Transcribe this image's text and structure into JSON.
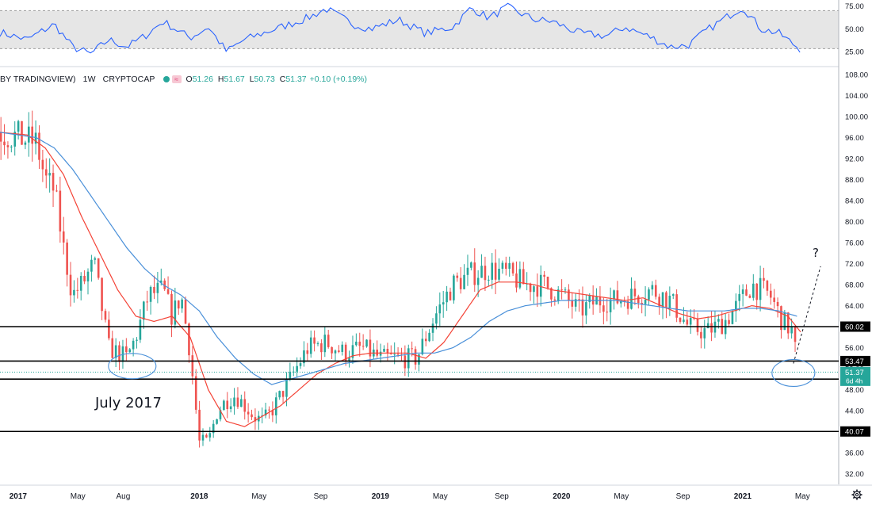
{
  "legend": {
    "symbol": "BY TRADINGVIEW)",
    "interval": "1W",
    "source": "CRYPTOCAP",
    "o_label": "O",
    "o": "51.26",
    "h_label": "H",
    "h": "51.67",
    "l_label": "L",
    "l": "50.73",
    "c_label": "C",
    "c": "51.37",
    "change": "+0.10 (+0.19%)"
  },
  "annotations": {
    "july_label": "July 2017",
    "question": "?"
  },
  "colors": {
    "up": "#26a69a",
    "down": "#ef5350",
    "ma_fast": "#f44336",
    "ma_slow": "#4a90d9",
    "rsi": "#2962ff",
    "level_line": "#000000",
    "price_tag": "#26a69a"
  },
  "chart_data": [
    {
      "type": "line",
      "panel": "oscillator",
      "yticks": [
        "75.00",
        "50.00",
        "25.00"
      ],
      "ylim": [
        10,
        80
      ],
      "band": [
        28,
        70
      ],
      "x": [
        2016.9,
        2017.05,
        2017.2,
        2017.3,
        2017.4,
        2017.5,
        2017.6,
        2017.7,
        2017.8,
        2017.95,
        2018.05,
        2018.15,
        2018.25,
        2018.35,
        2018.5,
        2018.6,
        2018.7,
        2018.85,
        2018.95,
        2019.1,
        2019.25,
        2019.4,
        2019.5,
        2019.6,
        2019.7,
        2019.85,
        2019.95,
        2020.1,
        2020.25,
        2020.35,
        2020.5,
        2020.6,
        2020.7,
        2020.8,
        2020.95,
        2021.0,
        2021.1,
        2021.2,
        2021.28,
        2021.33
      ],
      "values": [
        46,
        38,
        55,
        30,
        22,
        38,
        30,
        42,
        58,
        40,
        52,
        25,
        38,
        45,
        55,
        62,
        72,
        55,
        50,
        60,
        45,
        52,
        73,
        62,
        74,
        60,
        58,
        45,
        42,
        52,
        40,
        30,
        32,
        48,
        68,
        74,
        50,
        45,
        33,
        26
      ]
    },
    {
      "type": "line",
      "panel": "price",
      "yticks": [
        "108.00",
        "104.00",
        "100.00",
        "96.00",
        "92.00",
        "88.00",
        "84.00",
        "80.00",
        "76.00",
        "72.00",
        "68.00",
        "64.00",
        "60.00",
        "56.00",
        "52.00",
        "48.00",
        "44.00",
        "40.00",
        "36.00",
        "32.00"
      ],
      "ylim": [
        30,
        109.5
      ],
      "xticks": [
        {
          "label": "2017",
          "x": 2017.0
        },
        {
          "label": "May",
          "x": 2017.33
        },
        {
          "label": "Aug",
          "x": 2017.58
        },
        {
          "label": "2018",
          "x": 2018.0
        },
        {
          "label": "May",
          "x": 2018.33
        },
        {
          "label": "Sep",
          "x": 2018.67
        },
        {
          "label": "2019",
          "x": 2019.0
        },
        {
          "label": "May",
          "x": 2019.33
        },
        {
          "label": "Sep",
          "x": 2019.67
        },
        {
          "label": "2020",
          "x": 2020.0
        },
        {
          "label": "May",
          "x": 2020.33
        },
        {
          "label": "Sep",
          "x": 2020.67
        },
        {
          "label": "2021",
          "x": 2021.0
        },
        {
          "label": "May",
          "x": 2021.33
        }
      ],
      "price_x": [
        2016.9,
        2017.0,
        2017.1,
        2017.15,
        2017.2,
        2017.25,
        2017.3,
        2017.35,
        2017.42,
        2017.5,
        2017.55,
        2017.6,
        2017.65,
        2017.72,
        2017.8,
        2017.85,
        2017.9,
        2017.95,
        2018.0,
        2018.05,
        2018.1,
        2018.15,
        2018.2,
        2018.3,
        2018.35,
        2018.4,
        2018.5,
        2018.6,
        2018.7,
        2018.8,
        2018.9,
        2019.0,
        2019.1,
        2019.2,
        2019.3,
        2019.4,
        2019.5,
        2019.6,
        2019.7,
        2019.8,
        2019.9,
        2020.0,
        2020.1,
        2020.2,
        2020.3,
        2020.4,
        2020.5,
        2020.6,
        2020.7,
        2020.8,
        2020.9,
        2020.97,
        2021.05,
        2021.15,
        2021.22,
        2021.28,
        2021.3
      ],
      "price": [
        97,
        96,
        95,
        88,
        86,
        75,
        66,
        68,
        72,
        56,
        55,
        54,
        58,
        66,
        67,
        62,
        66,
        55,
        38,
        38,
        44,
        46,
        47,
        43,
        42,
        44,
        50,
        56,
        57,
        55,
        56,
        54,
        54,
        54,
        62,
        68,
        70,
        71,
        70,
        68,
        68,
        66,
        63,
        65,
        65,
        66,
        67,
        65,
        60,
        59,
        61,
        64,
        68,
        66,
        61,
        59,
        52
      ],
      "series": [
        {
          "role": "ma_fast",
          "x": [
            2016.9,
            2017.05,
            2017.15,
            2017.25,
            2017.35,
            2017.45,
            2017.55,
            2017.65,
            2017.75,
            2017.85,
            2017.95,
            2018.05,
            2018.15,
            2018.25,
            2018.35,
            2018.45,
            2018.55,
            2018.65,
            2018.75,
            2018.85,
            2018.95,
            2019.05,
            2019.15,
            2019.25,
            2019.35,
            2019.45,
            2019.55,
            2019.65,
            2019.75,
            2019.85,
            2019.95,
            2020.05,
            2020.15,
            2020.25,
            2020.35,
            2020.45,
            2020.55,
            2020.65,
            2020.75,
            2020.85,
            2020.95,
            2021.05,
            2021.15,
            2021.25,
            2021.32
          ],
          "values": [
            97,
            96.5,
            94,
            89,
            81,
            74,
            67,
            62,
            61,
            62,
            58,
            48,
            42,
            41,
            43,
            45,
            48,
            51,
            53,
            54.5,
            55,
            55,
            55,
            54,
            57,
            62,
            67,
            68.5,
            68.5,
            68,
            67,
            66.5,
            66,
            65.5,
            65,
            65.5,
            64,
            62.5,
            61.5,
            62,
            63,
            64,
            63.5,
            62,
            59
          ]
        },
        {
          "role": "ma_slow",
          "x": [
            2016.9,
            2017.1,
            2017.2,
            2017.3,
            2017.4,
            2017.5,
            2017.6,
            2017.7,
            2017.8,
            2017.9,
            2018.0,
            2018.1,
            2018.2,
            2018.3,
            2018.4,
            2018.5,
            2018.6,
            2018.7,
            2018.8,
            2018.9,
            2019.0,
            2019.1,
            2019.2,
            2019.3,
            2019.4,
            2019.5,
            2019.6,
            2019.7,
            2019.8,
            2019.9,
            2020.0,
            2020.1,
            2020.2,
            2020.3,
            2020.4,
            2020.5,
            2020.6,
            2020.7,
            2020.8,
            2020.9,
            2021.0,
            2021.1,
            2021.2,
            2021.3
          ],
          "values": [
            97,
            96,
            94,
            90,
            85,
            80,
            75,
            71,
            68,
            66,
            63,
            58,
            54,
            51,
            49,
            50,
            51,
            52,
            53,
            53.5,
            54,
            54.5,
            55,
            55,
            56,
            58,
            61,
            63,
            64,
            64.5,
            65,
            65,
            65,
            65,
            64.5,
            64,
            63.5,
            63,
            63,
            63,
            63.5,
            63.5,
            63,
            62
          ]
        }
      ],
      "levels": [
        {
          "value": 60.02,
          "label": "60.02"
        },
        {
          "value": 53.47,
          "label": "53.47"
        },
        {
          "value": 50.04,
          "label": "50.04"
        },
        {
          "value": 40.07,
          "label": "40.07"
        }
      ],
      "current": {
        "value": 51.37,
        "label": "51.37",
        "timer": "6d 4h"
      },
      "projection": {
        "from": [
          2021.28,
          53.0
        ],
        "to": [
          2021.43,
          71.5
        ]
      }
    }
  ]
}
